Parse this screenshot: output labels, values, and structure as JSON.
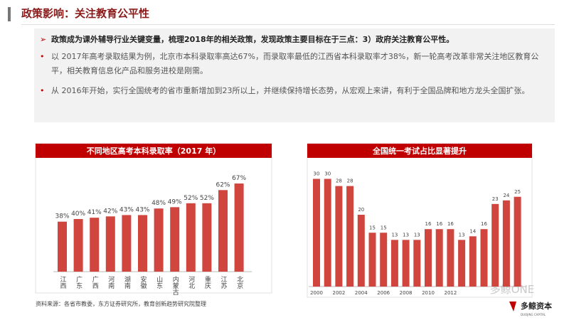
{
  "header": {
    "title": "政策影响：关注教育公平性"
  },
  "bullets": [
    "政策成为课外辅导行业关键变量，梳理2018年的相关政策，发现政策主要目标在于三点：3）政府关注教育公平性。",
    "以 2017年高考录取结果为例，北京市本科录取率高达67%，而录取率最低的江西省本科录取率才38%，新一轮高考改革非常关注地区教育公平，相关教育信息化产品和服务进校是刚需。",
    "从 2016年开始，实行全国统考的省市重新增加到23所以上，并继续保持增长态势，从宏观上来讲，有利于全国品牌和地方龙头全国扩张。"
  ],
  "source": "资料来源：各省市教委，东方证券研究所，教育创新趋势研究院整理",
  "watermark": "多鲸ONE",
  "logo": {
    "name": "多鲸资本",
    "subtitle": "DUOJING CAPITAL"
  },
  "chart_data": [
    {
      "type": "bar",
      "title": "不同地区高考本科录取率（2017 年）",
      "categories": [
        "江西",
        "广东",
        "广西",
        "河南",
        "湖南",
        "安徽",
        "山东",
        "内蒙古",
        "河北",
        "重庆",
        "江苏",
        "北京"
      ],
      "values": [
        38,
        40,
        41,
        42,
        43,
        43,
        48,
        49,
        52,
        52,
        62,
        67
      ],
      "value_labels": [
        "38%",
        "40%",
        "41%",
        "42%",
        "43%",
        "43%",
        "48%",
        "49%",
        "52%",
        "52%",
        "62%",
        "67%"
      ],
      "color": "#d0463f"
    },
    {
      "type": "bar",
      "title": "全国统一考试占比显著提升",
      "categories": [
        "2000",
        null,
        "2002",
        null,
        "2004",
        null,
        "2006",
        null,
        "2008",
        null,
        "2010",
        null,
        "2012",
        null,
        null,
        null,
        null,
        null,
        null
      ],
      "values": [
        30,
        30,
        28,
        28,
        20,
        15,
        15,
        13,
        13,
        13,
        16,
        16,
        16,
        13,
        14,
        16,
        23,
        24,
        25
      ],
      "color": "#d0463f"
    }
  ]
}
